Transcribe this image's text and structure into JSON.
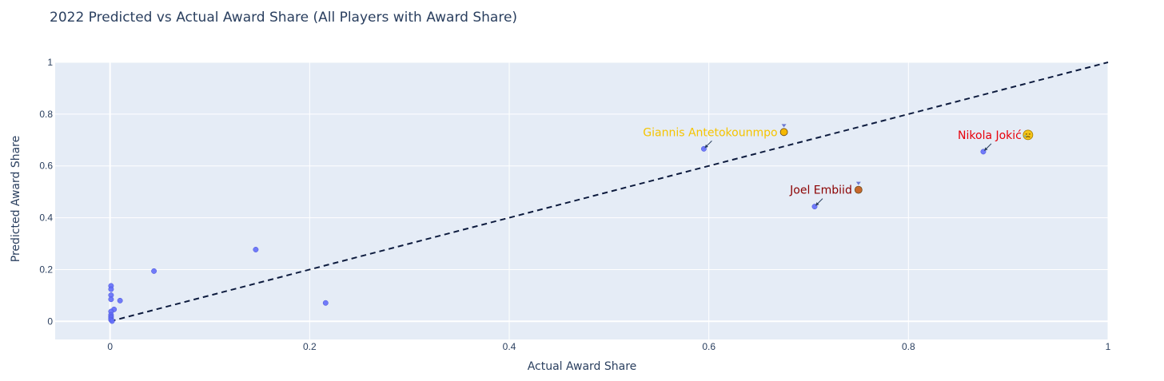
{
  "chart_data": {
    "type": "scatter",
    "title": "2022 Predicted vs Actual Award Share (All Players with Award Share)",
    "xlabel": "Actual Award Share",
    "ylabel": "Predicted Award Share",
    "xlim": [
      -0.055,
      1.0
    ],
    "ylim": [
      -0.07,
      1.0
    ],
    "x_ticks": [
      0,
      0.2,
      0.4,
      0.6,
      0.8,
      1
    ],
    "y_ticks": [
      0,
      0.2,
      0.4,
      0.6,
      0.8,
      1
    ],
    "x_tick_labels": [
      "0",
      "0.2",
      "0.4",
      "0.6",
      "0.8",
      "1"
    ],
    "y_tick_labels": [
      "0",
      "0.2",
      "0.4",
      "0.6",
      "0.8",
      "1"
    ],
    "grid": true,
    "marker_color": "#636efa",
    "reference_line": {
      "x": [
        0,
        1
      ],
      "y": [
        0,
        1
      ],
      "style": "dashed",
      "color": "#0d1b3e"
    },
    "points": [
      {
        "x": 0.875,
        "y": 0.655
      },
      {
        "x": 0.706,
        "y": 0.443
      },
      {
        "x": 0.595,
        "y": 0.666
      },
      {
        "x": 0.216,
        "y": 0.071
      },
      {
        "x": 0.146,
        "y": 0.277
      },
      {
        "x": 0.044,
        "y": 0.194
      },
      {
        "x": 0.01,
        "y": 0.08
      },
      {
        "x": 0.004,
        "y": 0.046
      },
      {
        "x": 0.001,
        "y": 0.137
      },
      {
        "x": 0.001,
        "y": 0.124
      },
      {
        "x": 0.001,
        "y": 0.101
      },
      {
        "x": 0.001,
        "y": 0.085
      },
      {
        "x": 0.001,
        "y": 0.038
      },
      {
        "x": 0.001,
        "y": 0.025
      },
      {
        "x": 0.001,
        "y": 0.018
      },
      {
        "x": 0.001,
        "y": 0.012
      },
      {
        "x": 0.001,
        "y": 0.006
      },
      {
        "x": 0.002,
        "y": 0.001
      }
    ],
    "annotations": [
      {
        "text": "Nikola Jokić",
        "emoji": "😢",
        "x": 0.875,
        "y": 0.655,
        "color": "#e8000b",
        "medal": "none",
        "medal_color": "#f5c518"
      },
      {
        "text": "Giannis Antetokounmpo",
        "emoji": "🥇",
        "x": 0.595,
        "y": 0.666,
        "color": "#f5c400",
        "medal": "gold",
        "medal_color": "#f5b800"
      },
      {
        "text": "Joel Embiid",
        "emoji": "🥉",
        "x": 0.706,
        "y": 0.443,
        "color": "#8b0000",
        "medal": "bronze",
        "medal_color": "#c8682c"
      }
    ]
  }
}
